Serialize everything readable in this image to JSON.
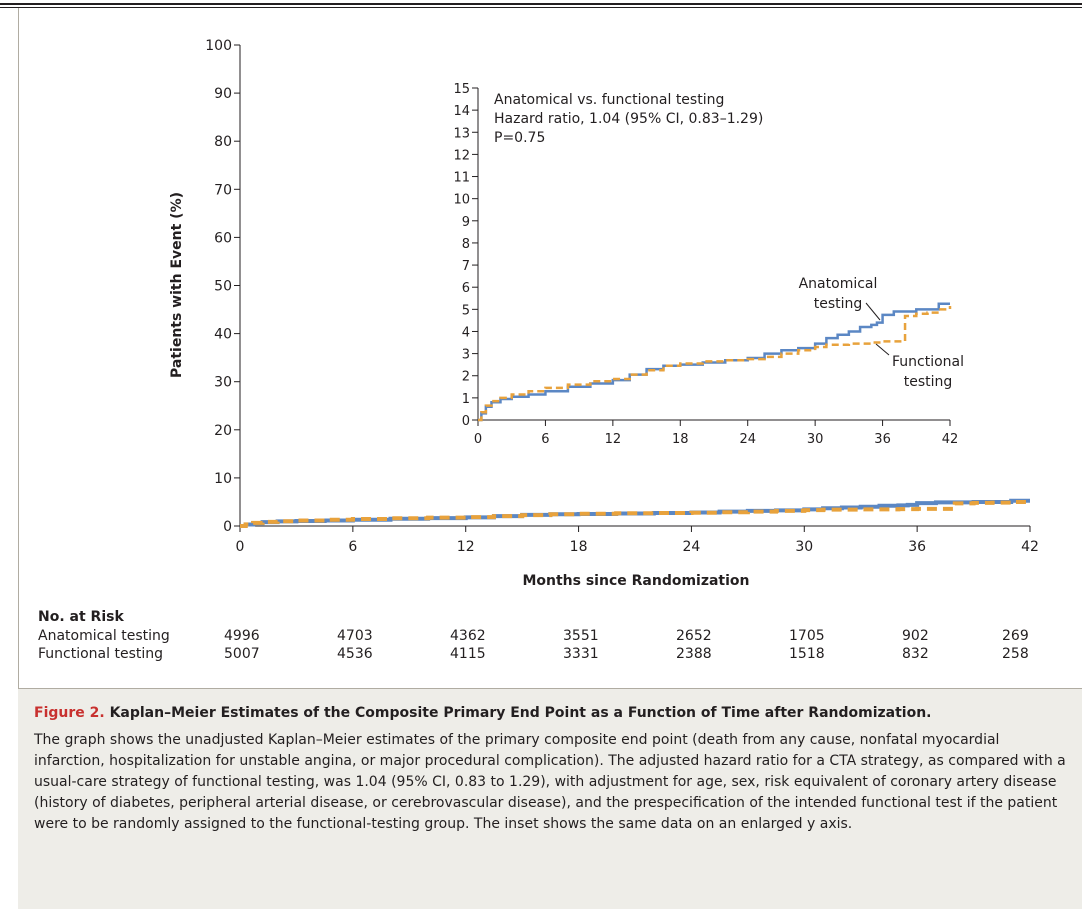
{
  "chart_data": [
    {
      "type": "line",
      "xlabel": "Months since Randomization",
      "ylabel": "Patients with Event (%)",
      "xlim": [
        0,
        42
      ],
      "ylim": [
        0,
        100
      ],
      "xticks": [
        0,
        6,
        12,
        18,
        24,
        30,
        36,
        42
      ],
      "yticks": [
        0,
        10,
        20,
        30,
        40,
        50,
        60,
        70,
        80,
        90,
        100
      ],
      "series": [
        {
          "name": "Anatomical testing",
          "color": "#5b87c4",
          "style": "solid",
          "x": [
            0,
            0.3,
            0.7,
            1.2,
            2,
            3,
            4.5,
            6,
            8,
            10,
            12,
            13.5,
            15,
            16.5,
            18,
            20,
            22,
            24,
            25.5,
            27,
            28.5,
            30,
            31,
            32,
            33,
            34,
            35,
            35.5,
            36,
            37,
            38,
            39,
            40,
            41,
            42
          ],
          "values": [
            0,
            0.3,
            0.6,
            0.8,
            0.95,
            1.05,
            1.15,
            1.3,
            1.5,
            1.65,
            1.8,
            2.05,
            2.3,
            2.45,
            2.5,
            2.6,
            2.7,
            2.8,
            3.0,
            3.15,
            3.25,
            3.45,
            3.7,
            3.85,
            4.0,
            4.2,
            4.3,
            4.4,
            4.75,
            4.9,
            4.9,
            5.0,
            5.0,
            5.25,
            5.25
          ]
        },
        {
          "name": "Functional testing",
          "color": "#e8a23c",
          "style": "dashed",
          "x": [
            0,
            0.3,
            0.7,
            1.2,
            2,
            3,
            4.5,
            6,
            8,
            10,
            12,
            13.5,
            15,
            16.5,
            18,
            20,
            22,
            24,
            25.5,
            27,
            28.5,
            30,
            31,
            32,
            33,
            34,
            35,
            36,
            37,
            38,
            39,
            40,
            41,
            42
          ],
          "values": [
            0,
            0.35,
            0.65,
            0.85,
            1.0,
            1.15,
            1.3,
            1.45,
            1.6,
            1.75,
            1.85,
            2.05,
            2.25,
            2.45,
            2.55,
            2.65,
            2.7,
            2.75,
            2.85,
            3.0,
            3.15,
            3.3,
            3.4,
            3.4,
            3.45,
            3.45,
            3.5,
            3.55,
            3.55,
            4.7,
            4.8,
            4.85,
            5.0,
            5.15
          ]
        }
      ]
    },
    {
      "type": "line",
      "xlim": [
        0,
        42
      ],
      "ylim": [
        0,
        15
      ],
      "xticks": [
        0,
        6,
        12,
        18,
        24,
        30,
        36,
        42
      ],
      "yticks": [
        0,
        1,
        2,
        3,
        4,
        5,
        6,
        7,
        8,
        9,
        10,
        11,
        12,
        13,
        14,
        15
      ],
      "annotation": [
        "Anatomical vs. functional testing",
        "Hazard ratio, 1.04 (95% CI, 0.83–1.29)",
        "P=0.75"
      ],
      "series_labels": [
        [
          "Anatomical",
          "testing"
        ],
        [
          "Functional",
          "testing"
        ]
      ],
      "series_ref": "same as main chart"
    }
  ],
  "risk_table": {
    "title": "No. at Risk",
    "rows": [
      {
        "name": "Anatomical testing",
        "values": [
          "4996",
          "4703",
          "4362",
          "3551",
          "2652",
          "1705",
          "902",
          "269"
        ]
      },
      {
        "name": "Functional testing",
        "values": [
          "5007",
          "4536",
          "4115",
          "3331",
          "2388",
          "1518",
          "832",
          "258"
        ]
      }
    ]
  },
  "caption": {
    "label": "Figure 2.",
    "title": "Kaplan–Meier Estimates of the Composite Primary End Point as a Function of Time after Randomization.",
    "text": "The graph shows the unadjusted Kaplan–Meier estimates of the primary composite end point (death from any cause, nonfatal myocardial infarction, hospitalization for unstable angina, or major procedural complication). The adjusted hazard ratio for a CTA strategy, as compared with a usual-care strategy of functional testing, was 1.04 (95% CI, 0.83 to 1.29), with adjustment for age, sex, risk equivalent of coronary artery disease (history of diabetes, peripheral arterial disease, or cerebrovascular disease), and the prespecification of the intended functional test if the patient were to be randomly assigned to the functional-testing group. The inset shows the same data on an enlarged y axis."
  }
}
